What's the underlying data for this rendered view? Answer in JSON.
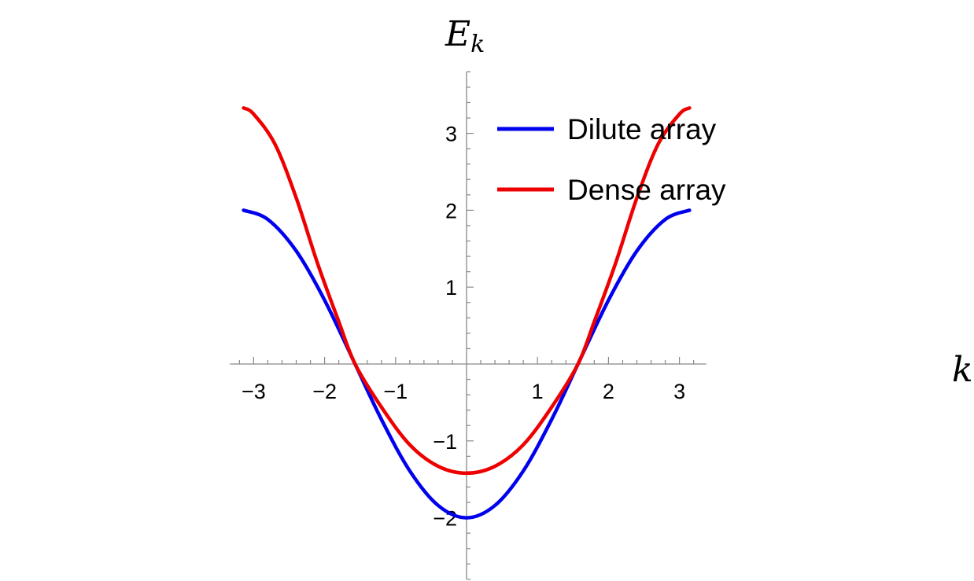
{
  "chart_data": {
    "type": "line",
    "xlabel": "k",
    "ylabel": "E",
    "ylabel_sub": "k",
    "xlim": [
      -3.2,
      3.2
    ],
    "ylim": [
      -2.8,
      3.8
    ],
    "x_ticks": [
      -3,
      -2,
      -1,
      1,
      2,
      3
    ],
    "x_tick_labels": [
      "−3",
      "−2",
      "−1",
      "1",
      "2",
      "3"
    ],
    "y_ticks": [
      -2,
      -1,
      1,
      2,
      3
    ],
    "y_tick_labels": [
      "−2",
      "−1",
      "1",
      "2",
      "3"
    ],
    "grid": false,
    "legend_position": "top-right",
    "series": [
      {
        "name": "Dilute array",
        "color": "#0000ee",
        "x": [
          -3.1416,
          -2.8,
          -2.4,
          -2.0,
          -1.5708,
          -1.2,
          -0.8,
          -0.4,
          0,
          0.4,
          0.8,
          1.2,
          1.5708,
          2.0,
          2.4,
          2.8,
          3.1416
        ],
        "y": [
          2.0,
          1.88,
          1.47,
          0.83,
          0.0,
          -0.72,
          -1.39,
          -1.84,
          -2.0,
          -1.84,
          -1.39,
          -0.72,
          0.0,
          0.83,
          1.47,
          1.88,
          2.0
        ]
      },
      {
        "name": "Dense array",
        "color": "#ee0000",
        "x": [
          -3.1416,
          -3.0,
          -2.7,
          -2.4,
          -2.1,
          -1.8,
          -1.5708,
          -1.2,
          -0.8,
          -0.4,
          0,
          0.4,
          0.8,
          1.2,
          1.5708,
          1.8,
          2.1,
          2.4,
          2.7,
          3.0,
          3.1416
        ],
        "y": [
          3.33,
          3.25,
          2.86,
          2.16,
          1.31,
          0.55,
          0.0,
          -0.56,
          -1.05,
          -1.33,
          -1.42,
          -1.33,
          -1.05,
          -0.56,
          0.0,
          0.55,
          1.31,
          2.16,
          2.86,
          3.25,
          3.33
        ]
      }
    ]
  }
}
